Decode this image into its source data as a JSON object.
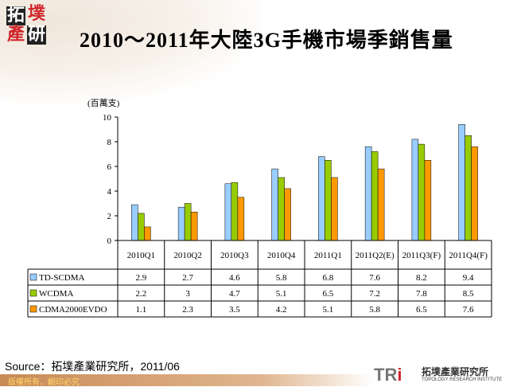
{
  "logo": {
    "chars": [
      "拓",
      "墣",
      "產",
      "研"
    ]
  },
  "title": "2010～2011年大陸3G手機市場季銷售量",
  "source": "Source：拓墣產業研究所，2011/06",
  "footer": {
    "copyright": "版權所有．翻印必究",
    "brand": "TRi",
    "brand_name": "拓墣產業研究所",
    "brand_en": "TOPOLOGY RESEARCH INSTITUTE"
  },
  "chart_data": {
    "type": "bar",
    "title": "",
    "ylabel": "(百萬支)",
    "ylim": [
      0,
      10
    ],
    "yticks": [
      0,
      2,
      4,
      6,
      8,
      10
    ],
    "grid": false,
    "legend": "data-table",
    "categories": [
      "2010Q1",
      "2010Q2",
      "2010Q3",
      "2010Q4",
      "2011Q1",
      "2011Q2(E)",
      "2011Q3(F)",
      "2011Q4(F)"
    ],
    "series": [
      {
        "name": "TD-SCDMA",
        "color": "#99ccff",
        "values": [
          2.9,
          2.7,
          4.6,
          5.8,
          6.8,
          7.6,
          8.2,
          9.4
        ]
      },
      {
        "name": "WCDMA",
        "color": "#99cc00",
        "values": [
          2.2,
          3,
          4.7,
          5.1,
          6.5,
          7.2,
          7.8,
          8.5
        ]
      },
      {
        "name": "CDMA2000EVDO",
        "color": "#ff9900",
        "values": [
          1.1,
          2.3,
          3.5,
          4.2,
          5.1,
          5.8,
          6.5,
          7.6
        ]
      }
    ]
  }
}
